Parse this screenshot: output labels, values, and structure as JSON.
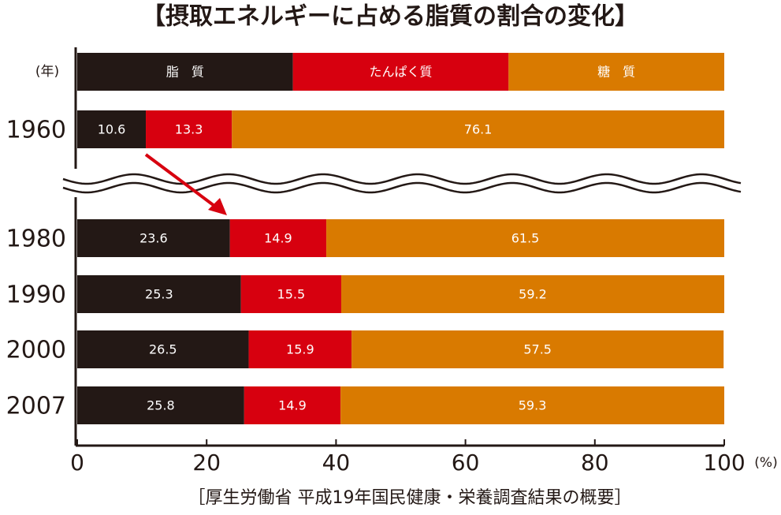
{
  "chart_data": {
    "type": "stacked-bar-horizontal",
    "title": "【摂取エネルギーに占める脂質の割合の変化】",
    "y_unit": "(年)",
    "x_unit": "(%)",
    "source": "［厚生労働省 平成19年国民健康・栄養調査結果の概要］",
    "categories": [
      "1960",
      "1980",
      "1990",
      "2000",
      "2007"
    ],
    "series": [
      {
        "name": "脂　質",
        "color": "#231815",
        "values": [
          10.6,
          23.6,
          25.3,
          26.5,
          25.8
        ]
      },
      {
        "name": "たんぱく質",
        "color": "#d7000f",
        "values": [
          13.3,
          14.9,
          15.5,
          15.9,
          14.9
        ]
      },
      {
        "name": "糖　質",
        "color": "#d97a00",
        "values": [
          76.1,
          61.5,
          59.2,
          57.5,
          59.3
        ]
      }
    ],
    "xlim": [
      0,
      100
    ],
    "xticks": [
      0,
      20,
      40,
      60,
      80,
      100
    ]
  }
}
